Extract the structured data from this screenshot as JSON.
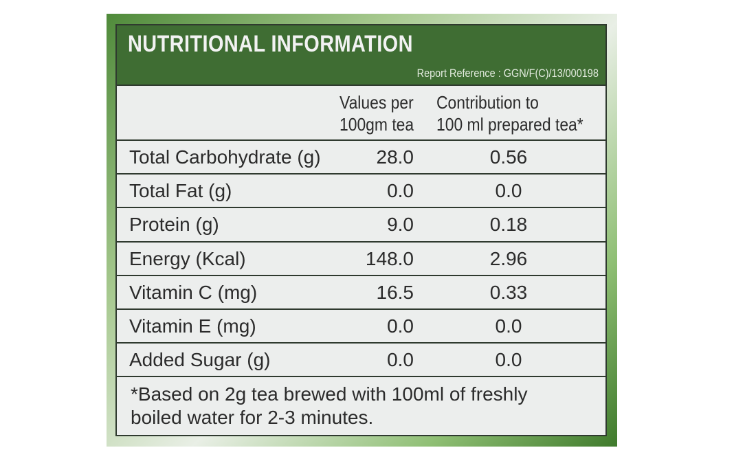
{
  "header": {
    "title": "NUTRITIONAL INFORMATION",
    "reference": "Report Reference : GGN/F(C)/13/000198"
  },
  "table": {
    "columns": [
      "Values per\n100gm tea",
      "Contribution to\n100 ml prepared tea*"
    ],
    "rows": [
      [
        "Total Carbohydrate (g)",
        "28.0",
        "0.56"
      ],
      [
        "Total Fat (g)",
        "0.0",
        "0.0"
      ],
      [
        "Protein (g)",
        "9.0",
        "0.18"
      ],
      [
        "Energy (Kcal)",
        "148.0",
        "2.96"
      ],
      [
        "Vitamin C (mg)",
        "16.5",
        "0.33"
      ],
      [
        "Vitamin E (mg)",
        "0.0",
        "0.0"
      ],
      [
        "Added Sugar (g)",
        "0.0",
        "0.0"
      ]
    ]
  },
  "footnote": "*Based on 2g tea brewed with 100ml of freshly\nboiled water for 2-3 minutes."
}
